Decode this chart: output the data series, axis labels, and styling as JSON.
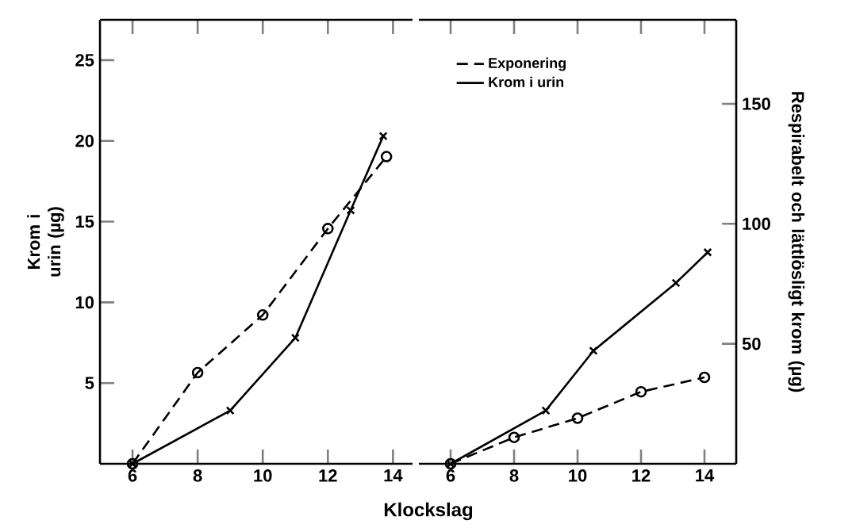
{
  "chart_data": [
    {
      "type": "line",
      "ylabel": "Krom i urin (µg)",
      "xlim": [
        5.0,
        14.6
      ],
      "xticks": [
        6,
        8,
        10,
        12,
        14
      ],
      "ylim": [
        0,
        27.5
      ],
      "yticks": [
        5,
        10,
        15,
        20,
        25
      ],
      "y2lim": [
        0,
        185
      ],
      "tick_labels": "xy",
      "series": [
        {
          "color": "#000000",
          "axis": "y2",
          "line_style": "dashed",
          "marker": "circle",
          "x": [
            6,
            8,
            10,
            12,
            13.8
          ],
          "values": [
            0,
            38,
            62,
            98,
            128
          ]
        },
        {
          "color": "#000000",
          "axis": "y",
          "line_style": "solid",
          "marker": "cross",
          "x": [
            6,
            9,
            11,
            12.7,
            13.7
          ],
          "values": [
            0,
            3.3,
            7.8,
            15.7,
            20.3
          ]
        }
      ]
    },
    {
      "type": "line",
      "xlabel": "Klockslag",
      "y2label": "Respirabelt och lättlösligt krom (µg)",
      "xlim": [
        5.0,
        15.0
      ],
      "xticks": [
        6,
        8,
        10,
        12,
        14
      ],
      "ylim": [
        0,
        27.5
      ],
      "y2lim": [
        0,
        185
      ],
      "y2ticks": [
        50,
        100,
        150
      ],
      "tick_labels": "xy2",
      "legend": "top left",
      "series": [
        {
          "name": "Exponering",
          "color": "#000000",
          "axis": "y2",
          "line_style": "dashed",
          "marker": "circle",
          "x": [
            6,
            8,
            10,
            12,
            14
          ],
          "values": [
            0,
            11,
            19,
            30,
            36
          ]
        },
        {
          "name": "Krom i urin",
          "color": "#000000",
          "axis": "y",
          "line_style": "solid",
          "marker": "cross",
          "x": [
            6,
            9,
            10.5,
            13.1,
            14.1
          ],
          "values": [
            0,
            3.3,
            7.0,
            11.2,
            13.1
          ]
        }
      ]
    }
  ]
}
